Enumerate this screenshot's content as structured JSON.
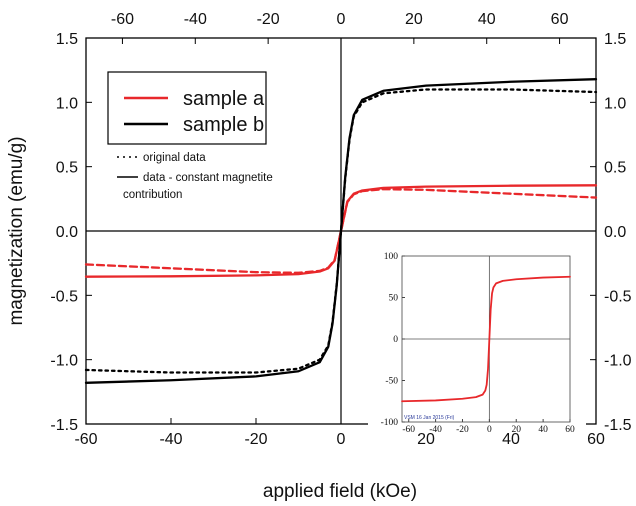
{
  "chart_data": [
    {
      "type": "line",
      "title": "",
      "xlabel": "applied field (kOe)",
      "ylabel": "magnetization (emu/g)",
      "xlim": [
        -60,
        60
      ],
      "ylim": [
        -1.5,
        1.5
      ],
      "top_axis_xlim": [
        -70,
        70
      ],
      "x_ticks": [
        -60,
        -40,
        -20,
        0,
        20,
        40,
        60
      ],
      "x_tick_labels": [
        "-60",
        "-40",
        "-20",
        "0",
        "20",
        "40",
        "60"
      ],
      "top_x_ticks": [
        -60,
        -40,
        -20,
        0,
        20,
        40,
        60
      ],
      "top_x_tick_labels": [
        "-60",
        "-40",
        "-20",
        "0",
        "20",
        "40",
        "60"
      ],
      "y_ticks": [
        -1.5,
        -1.0,
        -0.5,
        0.0,
        0.5,
        1.0,
        1.5
      ],
      "y_tick_labels": [
        "-1.5",
        "-1.0",
        "-0.5",
        "0.0",
        "0.5",
        "1.0",
        "1.5"
      ],
      "grid": false,
      "zero_lines": true,
      "legend_placement": "top-left",
      "legend": {
        "entries": [
          {
            "label": "sample a",
            "color": "#e8282b"
          },
          {
            "label": "sample b",
            "color": "#000000"
          }
        ],
        "style_entries": [
          {
            "label": "original data",
            "style": "dotted"
          },
          {
            "label": "data - constant magnetite",
            "label_line2": "contribution",
            "style": "solid"
          }
        ]
      },
      "series": [
        {
          "color": "#e8282b",
          "style": "solid",
          "x": [
            -60,
            -40,
            -20,
            -10,
            -5,
            -3,
            -1.5,
            0,
            1.5,
            3,
            5,
            10,
            20,
            40,
            60
          ],
          "values": [
            -0.355,
            -0.352,
            -0.345,
            -0.335,
            -0.315,
            -0.29,
            -0.23,
            0.0,
            0.23,
            0.29,
            0.315,
            0.335,
            0.345,
            0.352,
            0.355
          ]
        },
        {
          "color": "#e8282b",
          "style": "dashed",
          "x": [
            -60,
            -40,
            -20,
            -10,
            -5,
            -3,
            -1.5,
            0,
            1.5,
            3,
            5,
            10,
            20,
            40,
            60
          ],
          "values": [
            -0.26,
            -0.29,
            -0.32,
            -0.325,
            -0.31,
            -0.285,
            -0.225,
            0.0,
            0.225,
            0.285,
            0.31,
            0.325,
            0.32,
            0.29,
            0.26
          ]
        },
        {
          "color": "#000000",
          "style": "solid",
          "x": [
            -60,
            -40,
            -20,
            -10,
            -5,
            -3,
            -2,
            -1,
            0,
            1,
            2,
            3,
            5,
            10,
            20,
            40,
            60
          ],
          "values": [
            -1.18,
            -1.16,
            -1.13,
            -1.09,
            -1.02,
            -0.9,
            -0.72,
            -0.42,
            0.0,
            0.42,
            0.72,
            0.9,
            1.02,
            1.09,
            1.13,
            1.16,
            1.18
          ]
        },
        {
          "color": "#000000",
          "style": "dotted",
          "x": [
            -60,
            -40,
            -20,
            -10,
            -5,
            -3,
            -2,
            -1,
            0,
            1,
            2,
            3,
            5,
            10,
            20,
            40,
            60
          ],
          "values": [
            -1.08,
            -1.1,
            -1.1,
            -1.07,
            -1.0,
            -0.89,
            -0.71,
            -0.41,
            0.0,
            0.41,
            0.71,
            0.89,
            1.0,
            1.07,
            1.1,
            1.1,
            1.08
          ]
        }
      ]
    },
    {
      "type": "line",
      "title": "",
      "xlabel": "",
      "ylabel": "",
      "xlim": [
        -65,
        60
      ],
      "ylim": [
        -100,
        100
      ],
      "x_ticks": [
        -60,
        -40,
        -20,
        0,
        20,
        40,
        60
      ],
      "x_tick_labels": [
        "-60",
        "-40",
        "-20",
        "0",
        "20",
        "40",
        "60"
      ],
      "y_ticks": [
        -100,
        -50,
        0,
        50,
        100
      ],
      "y_tick_labels": [
        "-100",
        "-50",
        "0",
        "50",
        "100"
      ],
      "grid": false,
      "zero_lines": true,
      "placement": "bottom-right inset",
      "stamp_text": "VSM 16 Jan 2015 (Fri)",
      "series": [
        {
          "color": "#e8282b",
          "style": "solid",
          "x": [
            -65,
            -40,
            -20,
            -10,
            -5,
            -3,
            -2,
            -1,
            0,
            1,
            2,
            3,
            5,
            10,
            20,
            40,
            60
          ],
          "values": [
            -75,
            -74,
            -72,
            -70,
            -67,
            -62,
            -55,
            -36,
            0,
            36,
            55,
            62,
            67,
            70,
            72,
            74,
            75
          ]
        }
      ]
    }
  ]
}
